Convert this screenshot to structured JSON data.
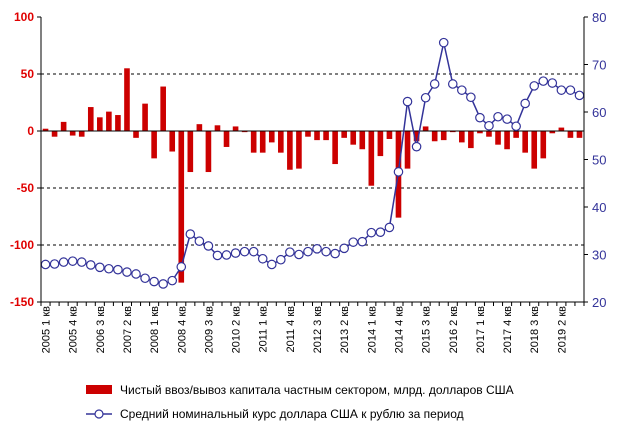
{
  "chart_data": {
    "type": "bar+line",
    "colors": {
      "bar": "#cc0000",
      "line": "#333399",
      "marker_fill": "#ffffff"
    },
    "left_axis": {
      "ylim": [
        -150,
        100
      ],
      "ticks": [
        100,
        50,
        0,
        -50,
        -100,
        -150
      ],
      "color": "#e00000"
    },
    "right_axis": {
      "ylim": [
        20,
        80
      ],
      "ticks": [
        80,
        70,
        60,
        50,
        40,
        30,
        20
      ],
      "color": "#333399"
    },
    "grid": "dashed horizontal at left-axis ticks",
    "x_tick_labels": [
      "2005 1 кв",
      "2005 4 кв",
      "2006 3 кв",
      "2007 2 кв",
      "2008 1 кв",
      "2008 4 кв",
      "2009 3 кв",
      "2010 2 кв",
      "2011 1 кв",
      "2011 4 кв",
      "2012 3 кв",
      "2013 2 кв",
      "2014 1 кв",
      "2014 4 кв",
      "2015 3 кв",
      "2016 2 кв",
      "2017 1 кв",
      "2017 4 кв",
      "2018 3 кв",
      "2019 2 кв"
    ],
    "quarters": [
      "2005 1 кв",
      "2005 2 кв",
      "2005 3 кв",
      "2005 4 кв",
      "2006 1 кв",
      "2006 2 кв",
      "2006 3 кв",
      "2006 4 кв",
      "2007 1 кв",
      "2007 2 кв",
      "2007 3 кв",
      "2007 4 кв",
      "2008 1 кв",
      "2008 2 кв",
      "2008 3 кв",
      "2008 4 кв",
      "2009 1 кв",
      "2009 2 кв",
      "2009 3 кв",
      "2009 4 кв",
      "2010 1 кв",
      "2010 2 кв",
      "2010 3 кв",
      "2010 4 кв",
      "2011 1 кв",
      "2011 2 кв",
      "2011 3 кв",
      "2011 4 кв",
      "2012 1 кв",
      "2012 2 кв",
      "2012 3 кв",
      "2012 4 кв",
      "2013 1 кв",
      "2013 2 кв",
      "2013 3 кв",
      "2013 4 кв",
      "2014 1 кв",
      "2014 2 кв",
      "2014 3 кв",
      "2014 4 кв",
      "2015 1 кв",
      "2015 2 кв",
      "2015 3 кв",
      "2015 4 кв",
      "2016 1 кв",
      "2016 2 кв",
      "2016 3 кв",
      "2016 4 кв",
      "2017 1 кв",
      "2017 2 кв",
      "2017 3 кв",
      "2017 4 кв",
      "2018 1 кв",
      "2018 2 кв",
      "2018 3 кв",
      "2018 4 кв",
      "2019 1 кв",
      "2019 2 кв",
      "2019 3 кв",
      "2019 4 кв"
    ],
    "series": [
      {
        "name": "Чистый ввоз/вывоз капитала частным сектором, млрд. долларов США",
        "type": "bar",
        "axis": "left",
        "values": [
          2,
          -5,
          8,
          -4,
          -5,
          21,
          12,
          17,
          14,
          55,
          -6,
          24,
          -24,
          39,
          -18,
          -133,
          -36,
          6,
          -36,
          5,
          -14,
          4,
          -1,
          -19,
          -19,
          -10,
          -19,
          -34,
          -33,
          -5,
          -8,
          -8,
          -29,
          -6,
          -12,
          -16,
          -48,
          -22,
          -7,
          -76,
          -33,
          -9,
          4,
          -9,
          -8,
          -1,
          -10,
          -15,
          -2,
          -5,
          -12,
          -16,
          -6,
          -19,
          -33,
          -24,
          -2,
          3,
          -6,
          -6
        ]
      },
      {
        "name": "Средний номинальный курс доллара США к рублю за период",
        "type": "line",
        "axis": "right",
        "values": [
          27.9,
          28.0,
          28.4,
          28.6,
          28.4,
          27.8,
          27.3,
          27.0,
          26.8,
          26.3,
          25.9,
          25.0,
          24.3,
          23.8,
          24.5,
          27.4,
          34.3,
          32.8,
          31.8,
          29.8,
          29.9,
          30.3,
          30.6,
          30.6,
          29.1,
          27.9,
          28.9,
          30.5,
          30.0,
          30.6,
          31.2,
          30.6,
          30.2,
          31.3,
          32.6,
          32.7,
          34.6,
          34.7,
          35.7,
          47.4,
          62.2,
          52.7,
          63.0,
          65.9,
          74.6,
          65.9,
          64.6,
          63.1,
          58.8,
          57.1,
          59.0,
          58.5,
          57.0,
          61.8,
          65.5,
          66.5,
          66.1,
          64.6,
          64.6,
          63.5
        ]
      }
    ],
    "legend_placement": "bottom"
  }
}
